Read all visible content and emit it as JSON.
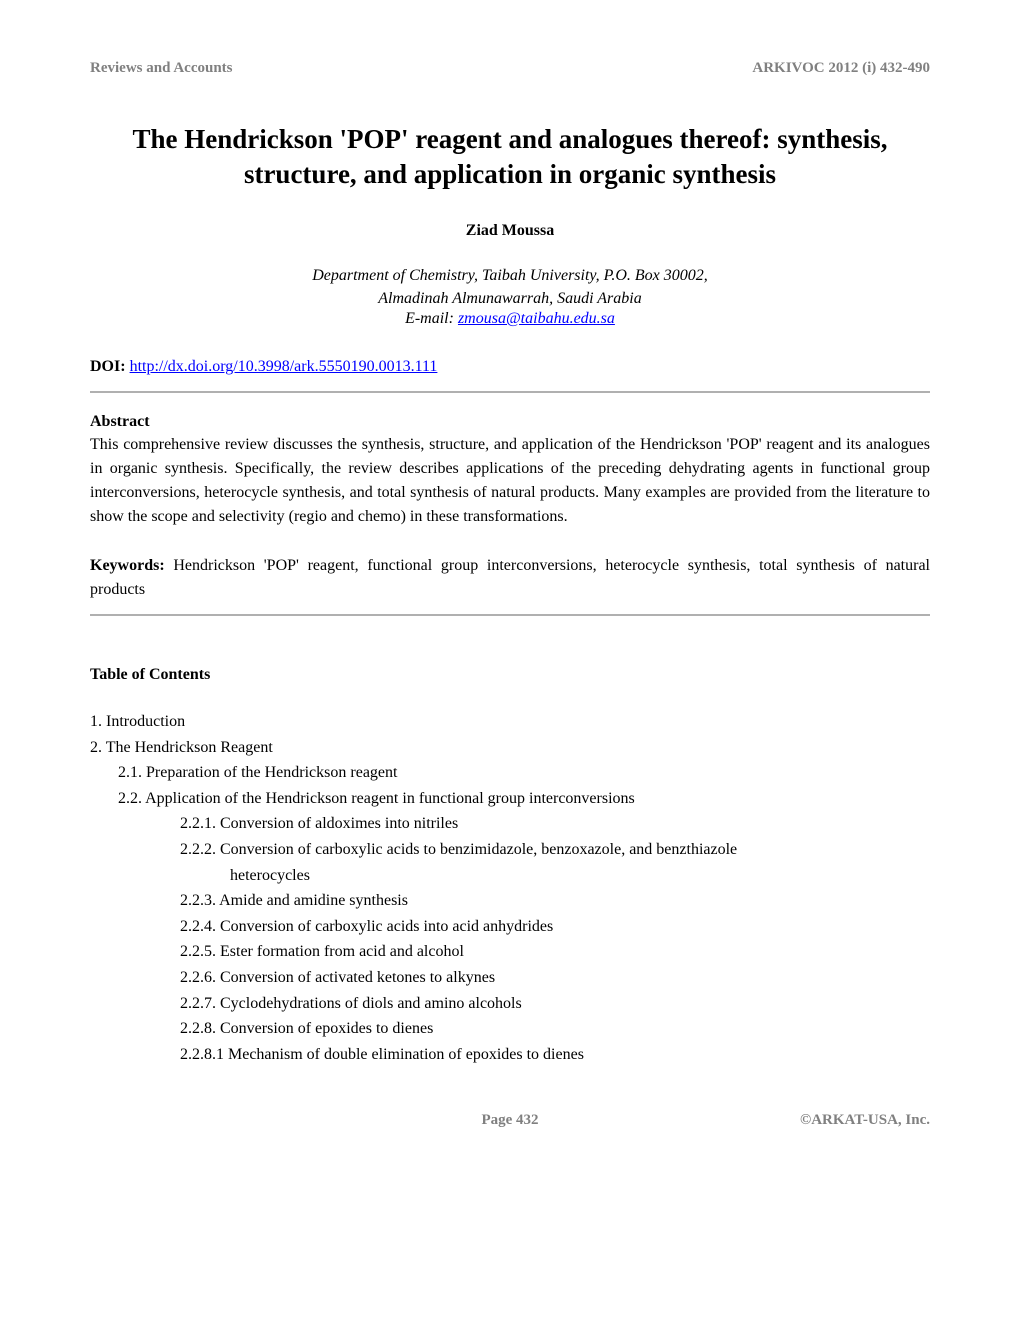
{
  "header": {
    "left": "Reviews and Accounts",
    "right": "ARKIVOC 2012 (i) 432-490"
  },
  "title": "The Hendrickson 'POP' reagent and analogues thereof: synthesis, structure, and application in organic synthesis",
  "author": "Ziad Moussa",
  "affiliation_line1": "Department of Chemistry, Taibah University, P.O. Box 30002,",
  "affiliation_line2": "Almadinah Almunawarrah, Saudi Arabia",
  "email_label": "E-mail: ",
  "email": "zmousa@taibahu.edu.sa",
  "doi_label": "DOI: ",
  "doi_link": "http://dx.doi.org/10.3998/ark.5550190.0013.111",
  "abstract_heading": "Abstract",
  "abstract_text": "This comprehensive review discusses the synthesis, structure, and application of the Hendrickson 'POP' reagent and its analogues in organic synthesis. Specifically, the review describes applications of the preceding dehydrating agents in functional group interconversions, heterocycle synthesis, and total synthesis of natural products. Many examples are provided from the literature to show the scope and selectivity (regio and chemo) in these transformations.",
  "keywords_label": "Keywords: ",
  "keywords_text": "Hendrickson 'POP' reagent, functional group interconversions, heterocycle synthesis, total synthesis of natural products",
  "toc_heading": "Table of Contents",
  "toc": {
    "item1": "1. Introduction",
    "item2": "2. The Hendrickson Reagent",
    "item2_1": "2.1. Preparation of the Hendrickson reagent",
    "item2_2": "2.2. Application of the Hendrickson reagent in functional group interconversions",
    "item2_2_1": "2.2.1. Conversion of aldoximes into nitriles",
    "item2_2_2a": "2.2.2. Conversion of carboxylic acids to benzimidazole, benzoxazole, and benzthiazole",
    "item2_2_2b": "heterocycles",
    "item2_2_3": "2.2.3. Amide and amidine synthesis",
    "item2_2_4": "2.2.4. Conversion of carboxylic acids into acid anhydrides",
    "item2_2_5": "2.2.5. Ester formation from acid and alcohol",
    "item2_2_6": "2.2.6. Conversion of activated ketones to alkynes",
    "item2_2_7": "2.2.7. Cyclodehydrations of diols and amino alcohols",
    "item2_2_8": "2.2.8. Conversion of epoxides to dienes",
    "item2_2_8_1": "2.2.8.1 Mechanism of double elimination of epoxides to dienes"
  },
  "footer": {
    "page": "Page 432",
    "right": "©ARKAT-USA, Inc."
  }
}
